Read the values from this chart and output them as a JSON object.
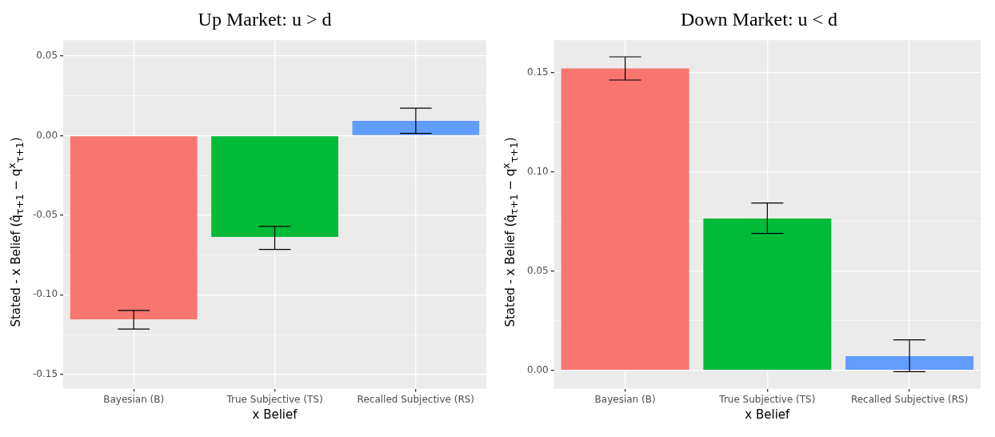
{
  "chart_data": [
    {
      "type": "bar",
      "title": "Up Market: u > d",
      "xlabel": "x Belief",
      "ylabel": "Stated - x Belief (q̂$_{τ+1}$ − q$^{x}$$_{τ+1}$)",
      "categories": [
        "Bayesian (B)",
        "True Subjective (TS)",
        "Recalled Subjective (RS)"
      ],
      "values": [
        -0.1154,
        -0.0636,
        0.0093
      ],
      "colors": [
        "#f8766d",
        "#00ba38",
        "#619cff"
      ],
      "errors": [
        [
          -0.1215,
          -0.1098
        ],
        [
          -0.0715,
          -0.057
        ],
        [
          0.0014,
          0.0173
        ]
      ],
      "ylim": [
        -0.159,
        0.06
      ],
      "yticks": [
        {
          "value": -0.15,
          "label": "-0.15"
        },
        {
          "value": -0.125,
          "label": null
        },
        {
          "value": -0.1,
          "label": "-0.10"
        },
        {
          "value": -0.075,
          "label": null
        },
        {
          "value": -0.05,
          "label": "-0.05"
        },
        {
          "value": -0.025,
          "label": null
        },
        {
          "value": 0,
          "label": "0.00"
        },
        {
          "value": 0.025,
          "label": null
        },
        {
          "value": 0.05,
          "label": "0.05"
        }
      ],
      "grid": true
    },
    {
      "type": "bar",
      "title": "Down Market: u < d",
      "xlabel": "x Belief",
      "ylabel": "Stated - x Belief (q̂$_{τ+1}$ − q$^{x}$$_{τ+1}$)",
      "categories": [
        "Bayesian (B)",
        "True Subjective (TS)",
        "Recalled Subjective (RS)"
      ],
      "values": [
        0.1522,
        0.0765,
        0.0071
      ],
      "colors": [
        "#f8766d",
        "#00ba38",
        "#619cff"
      ],
      "errors": [
        [
          0.1463,
          0.158
        ],
        [
          0.069,
          0.0843
        ],
        [
          -0.0007,
          0.0153
        ]
      ],
      "ylim": [
        -0.0093,
        0.1664
      ],
      "yticks": [
        {
          "value": 0,
          "label": "0.00"
        },
        {
          "value": 0.025,
          "label": null
        },
        {
          "value": 0.05,
          "label": "0.05"
        },
        {
          "value": 0.075,
          "label": null
        },
        {
          "value": 0.1,
          "label": "0.10"
        },
        {
          "value": 0.125,
          "label": null
        },
        {
          "value": 0.15,
          "label": "0.15"
        }
      ],
      "grid": true
    }
  ]
}
